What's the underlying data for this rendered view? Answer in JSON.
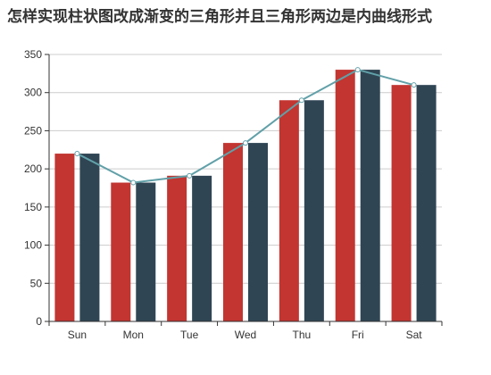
{
  "chart_data": {
    "type": "bar",
    "title": "怎样实现柱状图改成渐变的三角形并且三角形两边是内曲线形式",
    "categories": [
      "Sun",
      "Mon",
      "Tue",
      "Wed",
      "Thu",
      "Fri",
      "Sat"
    ],
    "series": [
      {
        "type": "bar",
        "values": [
          220,
          182,
          191,
          234,
          290,
          330,
          310
        ],
        "color": "#c23531"
      },
      {
        "type": "bar",
        "values": [
          220,
          182,
          191,
          234,
          290,
          330,
          310
        ],
        "color": "#2f4554"
      },
      {
        "type": "line",
        "values": [
          220,
          182,
          191,
          234,
          290,
          330,
          310
        ],
        "color": "#61a0a8"
      }
    ],
    "ylim": [
      0,
      350
    ],
    "yticks": [
      0,
      50,
      100,
      150,
      200,
      250,
      300,
      350
    ],
    "grid": true,
    "gridColor": "#cccccc",
    "axisColor": "#333333"
  }
}
